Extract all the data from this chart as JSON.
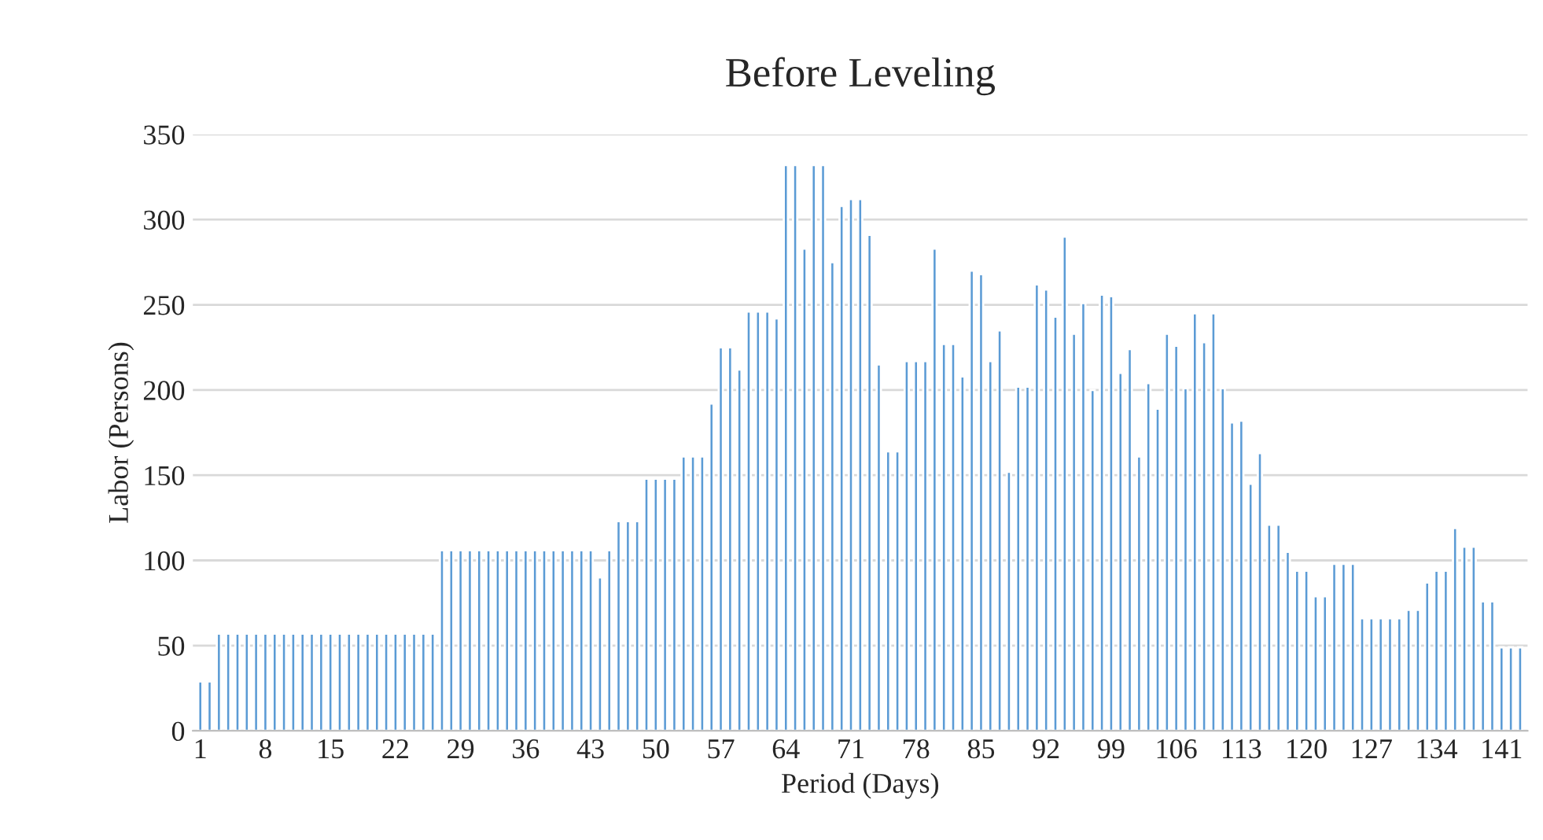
{
  "chart_data": {
    "type": "bar",
    "title": "Before Leveling",
    "xlabel": "Period (Days)",
    "ylabel": "Labor (Persons)",
    "categories": [
      "1",
      null,
      null,
      null,
      null,
      null,
      null,
      "8",
      null,
      null,
      null,
      null,
      null,
      null,
      "15",
      null,
      null,
      null,
      null,
      null,
      null,
      "22",
      null,
      null,
      null,
      null,
      null,
      null,
      "29",
      null,
      null,
      null,
      null,
      null,
      null,
      "36",
      null,
      null,
      null,
      null,
      null,
      null,
      "43",
      null,
      null,
      null,
      null,
      null,
      null,
      "50",
      null,
      null,
      null,
      null,
      null,
      null,
      "57",
      null,
      null,
      null,
      null,
      null,
      null,
      "64",
      null,
      null,
      null,
      null,
      null,
      null,
      "71",
      null,
      null,
      null,
      null,
      null,
      null,
      "78",
      null,
      null,
      null,
      null,
      null,
      null,
      "85",
      null,
      null,
      null,
      null,
      null,
      null,
      "92",
      null,
      null,
      null,
      null,
      null,
      null,
      "99",
      null,
      null,
      null,
      null,
      null,
      null,
      "106",
      null,
      null,
      null,
      null,
      null,
      null,
      "113",
      null,
      null,
      null,
      null,
      null,
      null,
      "120",
      null,
      null,
      null,
      null,
      null,
      null,
      "127",
      null,
      null,
      null,
      null,
      null,
      null,
      "134",
      null,
      null,
      null,
      null,
      null,
      null,
      "141",
      null,
      null
    ],
    "series": [
      {
        "color": "#5b9bd5",
        "values": [
          29,
          29,
          57,
          57,
          57,
          57,
          57,
          57,
          57,
          57,
          57,
          57,
          57,
          57,
          57,
          57,
          57,
          57,
          57,
          57,
          57,
          57,
          57,
          57,
          57,
          57,
          106,
          106,
          106,
          106,
          106,
          106,
          106,
          106,
          106,
          106,
          106,
          106,
          106,
          106,
          106,
          106,
          106,
          90,
          106,
          123,
          123,
          123,
          148,
          148,
          148,
          148,
          161,
          161,
          161,
          192,
          225,
          225,
          212,
          246,
          246,
          246,
          242,
          332,
          332,
          283,
          332,
          332,
          275,
          308,
          312,
          312,
          291,
          215,
          164,
          164,
          217,
          217,
          217,
          283,
          227,
          227,
          208,
          270,
          268,
          217,
          235,
          152,
          202,
          202,
          262,
          259,
          243,
          290,
          233,
          251,
          200,
          256,
          255,
          210,
          224,
          161,
          204,
          189,
          233,
          226,
          201,
          245,
          228,
          245,
          201,
          181,
          182,
          145,
          163,
          121,
          121,
          105,
          94,
          94,
          79,
          79,
          98,
          98,
          98,
          66,
          66,
          66,
          66,
          66,
          71,
          71,
          87,
          94,
          94,
          119,
          108,
          108,
          76,
          76,
          49,
          49,
          49
        ]
      }
    ],
    "ylim": [
      0,
      350
    ],
    "yticks": [
      0,
      50,
      100,
      150,
      200,
      250,
      300,
      350
    ],
    "grid": "y",
    "legend": false
  }
}
